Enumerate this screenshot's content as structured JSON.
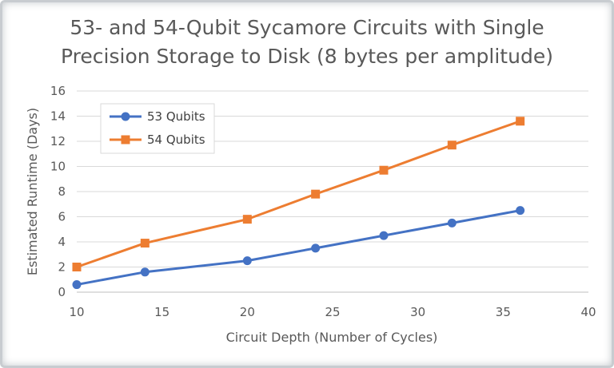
{
  "chart_data": {
    "type": "line",
    "title_lines": [
      "53- and 54-Qubit Sycamore Circuits with Single",
      "Precision Storage to Disk (8 bytes per amplitude)"
    ],
    "xlabel": "Circuit Depth (Number of Cycles)",
    "ylabel": "Estimated Runtime (Days)",
    "xlim": [
      10,
      40
    ],
    "ylim": [
      0,
      16
    ],
    "xticks": [
      10,
      15,
      20,
      25,
      30,
      35,
      40
    ],
    "yticks": [
      0,
      2,
      4,
      6,
      8,
      10,
      12,
      14,
      16
    ],
    "grid": "horizontal",
    "legend_position": "top-left",
    "series": [
      {
        "name": "53 Qubits",
        "color": "#4472c4",
        "marker": "circle",
        "x": [
          10,
          14,
          20,
          24,
          28,
          32,
          36
        ],
        "y": [
          0.6,
          1.6,
          2.5,
          3.5,
          4.5,
          5.5,
          6.5
        ]
      },
      {
        "name": "54 Qubits",
        "color": "#ed7d31",
        "marker": "square",
        "x": [
          10,
          14,
          20,
          24,
          28,
          32,
          36
        ],
        "y": [
          2.0,
          3.9,
          5.8,
          7.8,
          9.7,
          11.7,
          13.6
        ]
      }
    ]
  }
}
